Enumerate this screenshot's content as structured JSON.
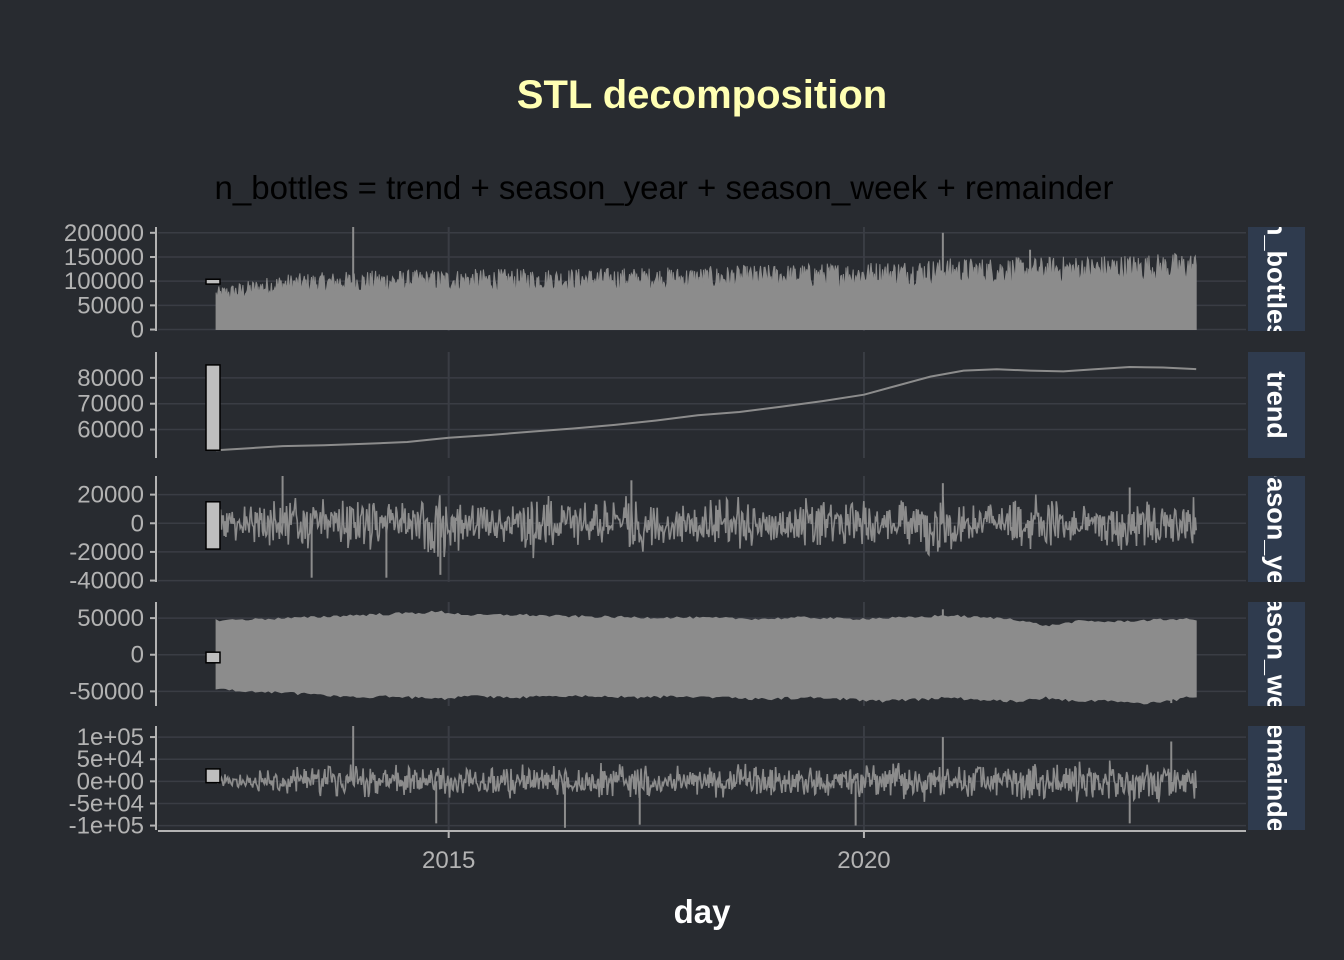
{
  "chart_data": {
    "type": "line",
    "title": "STL decomposition",
    "subtitle": "n_bottles = trend + season_year + season_week + remainder",
    "xlabel": "day",
    "xlim": [
      2011.5,
      2024.6
    ],
    "x_ticks": [
      {
        "value": 2015,
        "label": "2015"
      },
      {
        "value": 2020,
        "label": "2020"
      }
    ],
    "x_start": 2012.2,
    "x_end": 2024.0,
    "grid": true,
    "colors": {
      "background": "#282b30",
      "title": "#ffffb3",
      "line": "#8c8c8c",
      "strip": "#2f3b4e",
      "grid": "#3a3d44",
      "tick_text": "#b3b3b3",
      "scale_bar": "#bebebe"
    },
    "panels": [
      {
        "name": "n_bottles",
        "strip_label": "n_bottles",
        "render": "dense",
        "ylim": [
          -3000,
          212000
        ],
        "y_ticks": [
          {
            "value": 200000,
            "label": "200000"
          },
          {
            "value": 150000,
            "label": "150000"
          },
          {
            "value": 100000,
            "label": "100000"
          },
          {
            "value": 50000,
            "label": "50000"
          },
          {
            "value": 0,
            "label": "0"
          }
        ],
        "scale_bar": [
          94000,
          104000
        ],
        "outline": {
          "x": [
            2012.2,
            2013,
            2014,
            2015,
            2016,
            2017,
            2018,
            2019,
            2020,
            2021,
            2022,
            2023,
            2024.0
          ],
          "upper": [
            88000,
            115000,
            122000,
            125000,
            126000,
            128000,
            130000,
            135000,
            140000,
            148000,
            150000,
            155000,
            160000
          ],
          "lower": [
            0,
            0,
            0,
            0,
            0,
            0,
            0,
            0,
            0,
            0,
            0,
            0,
            0
          ]
        },
        "spikes": [
          [
            2013.85,
            212000
          ],
          [
            2022.0,
            165000
          ],
          [
            2020.95,
            200000
          ]
        ]
      },
      {
        "name": "trend",
        "strip_label": "trend",
        "render": "line",
        "ylim": [
          49000,
          90000
        ],
        "y_ticks": [
          {
            "value": 80000,
            "label": "80000"
          },
          {
            "value": 70000,
            "label": "70000"
          },
          {
            "value": 60000,
            "label": "60000"
          }
        ],
        "scale_bar": [
          52000,
          85000
        ],
        "x": [
          2012.2,
          2012.6,
          2013.0,
          2013.5,
          2014.0,
          2014.5,
          2015.0,
          2015.5,
          2016.0,
          2016.5,
          2017.0,
          2017.5,
          2018.0,
          2018.5,
          2019.0,
          2019.5,
          2020.0,
          2020.4,
          2020.8,
          2021.2,
          2021.6,
          2022.0,
          2022.4,
          2022.8,
          2023.2,
          2023.6,
          2024.0
        ],
        "y": [
          52000,
          52800,
          53600,
          53900,
          54500,
          55200,
          56800,
          57900,
          59200,
          60400,
          61800,
          63500,
          65500,
          66800,
          68800,
          71000,
          73500,
          77000,
          80500,
          82800,
          83300,
          82800,
          82500,
          83400,
          84200,
          84000,
          83400
        ]
      },
      {
        "name": "season_year",
        "strip_label": "season_year",
        "render": "dense",
        "ylim": [
          -41000,
          33000
        ],
        "y_ticks": [
          {
            "value": 20000,
            "label": "20000"
          },
          {
            "value": 0,
            "label": "0"
          },
          {
            "value": -20000,
            "label": "-20000"
          },
          {
            "value": -40000,
            "label": "-40000"
          }
        ],
        "scale_bar": [
          -18000,
          15000
        ],
        "outline": {
          "x": [
            2012.2,
            2012.5,
            2012.8,
            2013.0,
            2013.3,
            2013.6,
            2013.9,
            2014.2,
            2014.5,
            2014.9,
            2015.3,
            2015.7,
            2016.0,
            2016.4,
            2016.8,
            2017.2,
            2017.6,
            2018.0,
            2018.4,
            2018.8,
            2019.2,
            2019.6,
            2020.0,
            2020.4,
            2020.8,
            2021.2,
            2021.6,
            2022.0,
            2022.4,
            2022.8,
            2023.2,
            2023.6,
            2024.0
          ],
          "upper": [
            12000,
            14000,
            18000,
            28000,
            20000,
            16000,
            26000,
            18000,
            17000,
            24000,
            19000,
            16000,
            24000,
            18000,
            17000,
            26000,
            17000,
            16000,
            24000,
            17000,
            16000,
            23000,
            18000,
            16000,
            24000,
            17000,
            16000,
            24000,
            17000,
            16000,
            24000,
            18000,
            20000
          ],
          "lower": [
            -12000,
            -14000,
            -22000,
            -28000,
            -18000,
            -16000,
            -30000,
            -16000,
            -18000,
            -32000,
            -17000,
            -16000,
            -30000,
            -16000,
            -17000,
            -32000,
            -16000,
            -15000,
            -28000,
            -16000,
            -15000,
            -26000,
            -16000,
            -15000,
            -28000,
            -16000,
            -15000,
            -26000,
            -16000,
            -15000,
            -30000,
            -16000,
            -18000
          ]
        },
        "spikes": [
          [
            2013.0,
            33000
          ],
          [
            2013.35,
            -38000
          ],
          [
            2014.25,
            -38000
          ],
          [
            2014.9,
            -36000
          ],
          [
            2017.2,
            30000
          ],
          [
            2020.95,
            28000
          ],
          [
            2023.2,
            25000
          ]
        ]
      },
      {
        "name": "season_week",
        "strip_label": "season_week",
        "render": "band",
        "ylim": [
          -70000,
          72000
        ],
        "y_ticks": [
          {
            "value": 50000,
            "label": "50000"
          },
          {
            "value": 0,
            "label": "0"
          },
          {
            "value": -50000,
            "label": "-50000"
          }
        ],
        "scale_bar": [
          -11000,
          3500
        ],
        "outline": {
          "x": [
            2012.2,
            2012.8,
            2013.3,
            2013.8,
            2014.3,
            2014.9,
            2015.3,
            2015.8,
            2016.3,
            2016.8,
            2017.3,
            2017.8,
            2018.3,
            2018.8,
            2019.3,
            2019.8,
            2020.2,
            2020.6,
            2021.0,
            2021.4,
            2021.8,
            2022.2,
            2022.6,
            2023.0,
            2023.4,
            2023.8,
            2024.0
          ],
          "upper": [
            48000,
            50000,
            52000,
            55000,
            57000,
            60000,
            55000,
            56000,
            54000,
            53000,
            52000,
            52000,
            51000,
            50000,
            52000,
            50000,
            51000,
            52000,
            55000,
            52000,
            50000,
            40000,
            47000,
            46000,
            48000,
            50000,
            49000
          ],
          "lower": [
            -48000,
            -52000,
            -55000,
            -60000,
            -58000,
            -62000,
            -58000,
            -60000,
            -58000,
            -58000,
            -60000,
            -58000,
            -60000,
            -62000,
            -60000,
            -62000,
            -65000,
            -63000,
            -60000,
            -63000,
            -65000,
            -60000,
            -66000,
            -64000,
            -68000,
            -62000,
            -58000
          ]
        },
        "spikes": [
          [
            2020.95,
            62000
          ],
          [
            2022.3,
            -58000
          ],
          [
            2023.7,
            -66000
          ]
        ]
      },
      {
        "name": "remainder",
        "strip_label": "remainder",
        "render": "dense",
        "ylim": [
          -110000,
          125000
        ],
        "y_ticks": [
          {
            "value": 100000,
            "label": "1e+05"
          },
          {
            "value": 50000,
            "label": "5e+04"
          },
          {
            "value": 0,
            "label": "0e+00"
          },
          {
            "value": -50000,
            "label": "-5e+04"
          },
          {
            "value": -100000,
            "label": "-1e+05"
          }
        ],
        "scale_bar": [
          -3000,
          28000
        ],
        "outline": {
          "x": [
            2012.2,
            2012.8,
            2013.4,
            2014.0,
            2014.6,
            2015.2,
            2015.8,
            2016.4,
            2017.0,
            2017.6,
            2018.2,
            2018.8,
            2019.4,
            2020.0,
            2020.6,
            2021.2,
            2021.8,
            2022.4,
            2023.0,
            2023.6,
            2024.0
          ],
          "upper": [
            15000,
            30000,
            40000,
            45000,
            40000,
            42000,
            45000,
            42000,
            45000,
            40000,
            40000,
            42000,
            40000,
            42000,
            48000,
            45000,
            45000,
            50000,
            55000,
            55000,
            55000
          ],
          "lower": [
            -10000,
            -30000,
            -40000,
            -45000,
            -40000,
            -42000,
            -45000,
            -42000,
            -45000,
            -40000,
            -40000,
            -42000,
            -40000,
            -42000,
            -48000,
            -45000,
            -45000,
            -50000,
            -55000,
            -55000,
            -55000
          ]
        },
        "spikes": [
          [
            2013.85,
            125000
          ],
          [
            2014.85,
            -95000
          ],
          [
            2016.4,
            -105000
          ],
          [
            2017.3,
            -98000
          ],
          [
            2019.9,
            -100000
          ],
          [
            2020.95,
            100000
          ],
          [
            2023.2,
            -95000
          ],
          [
            2023.7,
            90000
          ]
        ]
      }
    ]
  }
}
